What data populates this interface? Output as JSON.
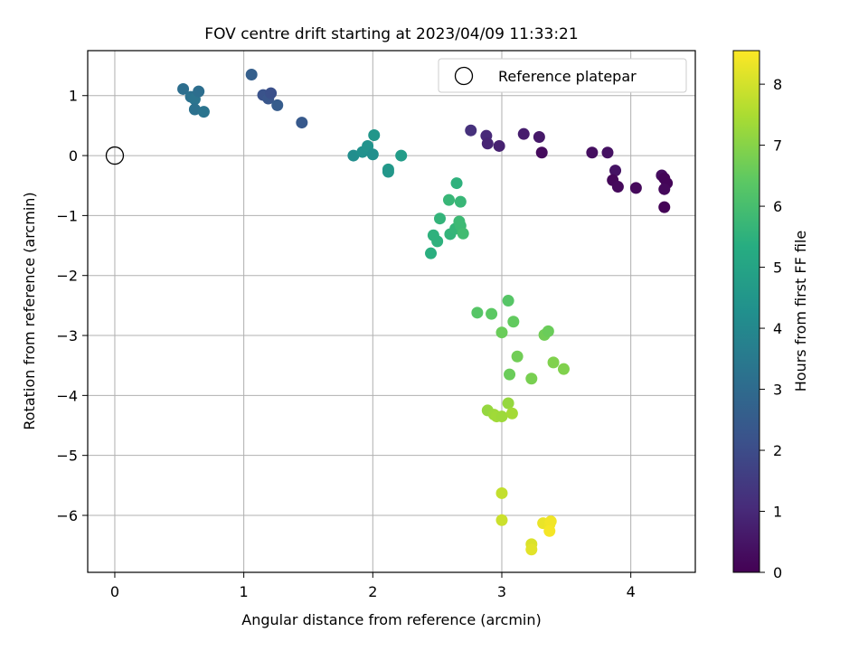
{
  "chart_data": {
    "type": "scatter",
    "title": "FOV centre drift starting at 2023/04/09 11:33:21",
    "xlabel": "Angular distance from reference (arcmin)",
    "ylabel": "Rotation from reference (arcmin)",
    "xlim": [
      -0.21,
      4.5
    ],
    "ylim": [
      -6.95,
      1.75
    ],
    "xticks": [
      0,
      1,
      2,
      3,
      4
    ],
    "yticks": [
      1,
      0,
      -1,
      -2,
      -3,
      -4,
      -5,
      -6
    ],
    "grid": true,
    "legend": {
      "position": "top-right",
      "label": "Reference platepar"
    },
    "reference_point": {
      "x": 0,
      "y": 0
    },
    "colorbar": {
      "label": "Hours from first FF file",
      "range": [
        0,
        8.55
      ],
      "ticks": [
        0,
        1,
        2,
        3,
        4,
        5,
        6,
        7,
        8
      ],
      "colormap": "viridis"
    },
    "points": [
      {
        "x": 3.31,
        "y": 0.05,
        "c": 0.25
      },
      {
        "x": 3.7,
        "y": 0.05,
        "c": 0.35
      },
      {
        "x": 3.82,
        "y": 0.05,
        "c": 0.4
      },
      {
        "x": 3.88,
        "y": -0.25,
        "c": 0.45
      },
      {
        "x": 3.86,
        "y": -0.41,
        "c": 0.15
      },
      {
        "x": 3.9,
        "y": -0.52,
        "c": 0.2
      },
      {
        "x": 4.04,
        "y": -0.54,
        "c": 0.2
      },
      {
        "x": 4.24,
        "y": -0.33,
        "c": 0.3
      },
      {
        "x": 4.26,
        "y": -0.38,
        "c": 0.1
      },
      {
        "x": 4.28,
        "y": -0.46,
        "c": 0.1
      },
      {
        "x": 4.26,
        "y": -0.56,
        "c": 0.2
      },
      {
        "x": 4.26,
        "y": -0.86,
        "c": 0.05
      },
      {
        "x": 2.76,
        "y": 0.42,
        "c": 1.2
      },
      {
        "x": 2.88,
        "y": 0.33,
        "c": 1.0
      },
      {
        "x": 2.89,
        "y": 0.2,
        "c": 0.9
      },
      {
        "x": 2.98,
        "y": 0.16,
        "c": 0.8
      },
      {
        "x": 3.17,
        "y": 0.36,
        "c": 0.7
      },
      {
        "x": 3.29,
        "y": 0.31,
        "c": 0.6
      },
      {
        "x": 1.06,
        "y": 1.35,
        "c": 2.6
      },
      {
        "x": 1.15,
        "y": 1.01,
        "c": 2.2
      },
      {
        "x": 1.19,
        "y": 0.95,
        "c": 2.3
      },
      {
        "x": 1.21,
        "y": 1.04,
        "c": 2.1
      },
      {
        "x": 1.26,
        "y": 0.84,
        "c": 2.5
      },
      {
        "x": 1.45,
        "y": 0.55,
        "c": 2.4
      },
      {
        "x": 0.53,
        "y": 1.11,
        "c": 3.1
      },
      {
        "x": 0.59,
        "y": 0.98,
        "c": 3.2
      },
      {
        "x": 0.62,
        "y": 0.94,
        "c": 3.3
      },
      {
        "x": 0.65,
        "y": 1.07,
        "c": 3.1
      },
      {
        "x": 0.62,
        "y": 0.77,
        "c": 3.2
      },
      {
        "x": 0.69,
        "y": 0.73,
        "c": 3.3
      },
      {
        "x": 1.85,
        "y": 0.0,
        "c": 4.2
      },
      {
        "x": 1.92,
        "y": 0.06,
        "c": 4.3
      },
      {
        "x": 1.96,
        "y": 0.16,
        "c": 4.4
      },
      {
        "x": 2.0,
        "y": 0.02,
        "c": 4.25
      },
      {
        "x": 2.01,
        "y": 0.34,
        "c": 4.5
      },
      {
        "x": 2.12,
        "y": -0.23,
        "c": 4.6
      },
      {
        "x": 2.12,
        "y": -0.27,
        "c": 4.55
      },
      {
        "x": 2.22,
        "y": 0.0,
        "c": 4.7
      },
      {
        "x": 2.45,
        "y": -1.63,
        "c": 5.4
      },
      {
        "x": 2.47,
        "y": -1.33,
        "c": 5.5
      },
      {
        "x": 2.5,
        "y": -1.43,
        "c": 5.5
      },
      {
        "x": 2.52,
        "y": -1.05,
        "c": 5.6
      },
      {
        "x": 2.59,
        "y": -0.74,
        "c": 5.7
      },
      {
        "x": 2.6,
        "y": -1.31,
        "c": 5.6
      },
      {
        "x": 2.64,
        "y": -1.22,
        "c": 5.65
      },
      {
        "x": 2.65,
        "y": -0.46,
        "c": 5.5
      },
      {
        "x": 2.68,
        "y": -0.77,
        "c": 5.7
      },
      {
        "x": 2.67,
        "y": -1.1,
        "c": 5.8
      },
      {
        "x": 2.68,
        "y": -1.17,
        "c": 5.8
      },
      {
        "x": 2.7,
        "y": -1.3,
        "c": 5.9
      },
      {
        "x": 2.81,
        "y": -2.62,
        "c": 6.3
      },
      {
        "x": 2.92,
        "y": -2.64,
        "c": 6.4
      },
      {
        "x": 3.0,
        "y": -2.95,
        "c": 6.6
      },
      {
        "x": 3.05,
        "y": -2.42,
        "c": 6.3
      },
      {
        "x": 3.09,
        "y": -2.77,
        "c": 6.5
      },
      {
        "x": 3.06,
        "y": -3.65,
        "c": 6.6
      },
      {
        "x": 3.12,
        "y": -3.35,
        "c": 6.7
      },
      {
        "x": 3.23,
        "y": -3.72,
        "c": 6.8
      },
      {
        "x": 3.33,
        "y": -2.99,
        "c": 6.7
      },
      {
        "x": 3.36,
        "y": -2.93,
        "c": 6.6
      },
      {
        "x": 3.4,
        "y": -3.45,
        "c": 6.9
      },
      {
        "x": 3.48,
        "y": -3.56,
        "c": 6.9
      },
      {
        "x": 2.89,
        "y": -4.25,
        "c": 7.2
      },
      {
        "x": 2.94,
        "y": -4.32,
        "c": 7.3
      },
      {
        "x": 2.96,
        "y": -4.35,
        "c": 7.35
      },
      {
        "x": 3.0,
        "y": -4.35,
        "c": 7.3
      },
      {
        "x": 3.05,
        "y": -4.13,
        "c": 7.2
      },
      {
        "x": 3.08,
        "y": -4.3,
        "c": 7.4
      },
      {
        "x": 3.0,
        "y": -5.63,
        "c": 7.8
      },
      {
        "x": 3.0,
        "y": -6.08,
        "c": 7.9
      },
      {
        "x": 3.23,
        "y": -6.48,
        "c": 8.1
      },
      {
        "x": 3.23,
        "y": -6.57,
        "c": 8.2
      },
      {
        "x": 3.32,
        "y": -6.13,
        "c": 8.3
      },
      {
        "x": 3.37,
        "y": -6.15,
        "c": 8.35
      },
      {
        "x": 3.38,
        "y": -6.1,
        "c": 8.4
      },
      {
        "x": 3.37,
        "y": -6.26,
        "c": 8.45
      }
    ]
  }
}
